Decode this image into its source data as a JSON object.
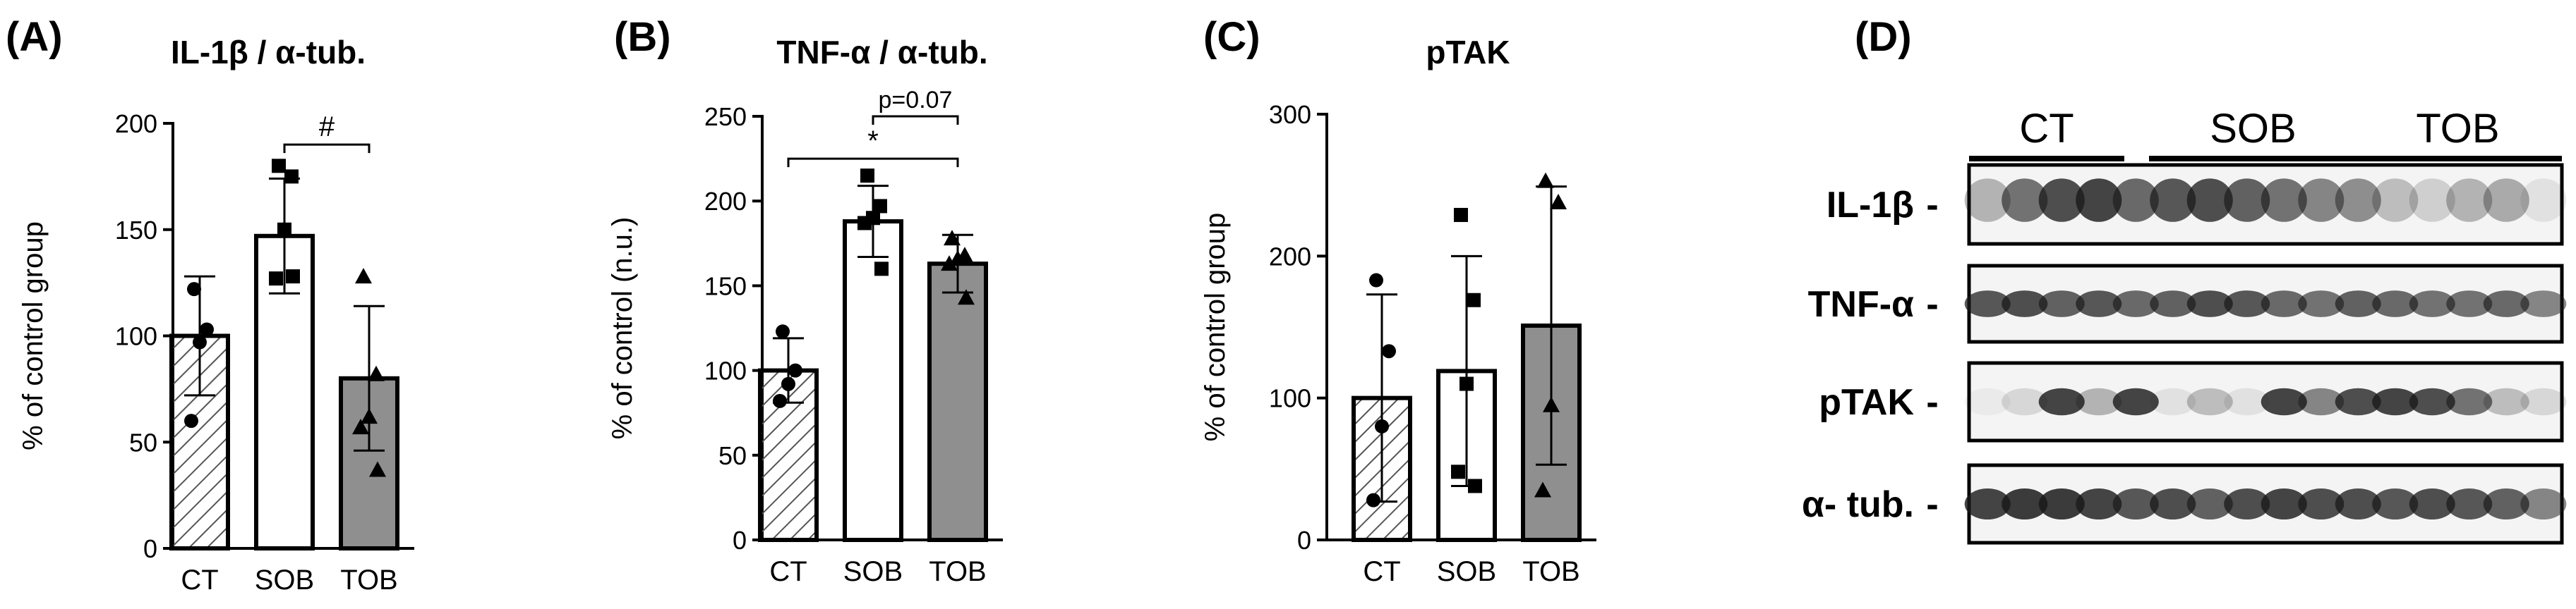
{
  "colors": {
    "ink": "#000000",
    "hatch": "#555555",
    "open": "#ffffff",
    "grey": "#8f8f8f",
    "gel": "#1a1a1a"
  },
  "chart_data": [
    {
      "panel": "(A)",
      "type": "bar",
      "title": "IL-1β / α-tub.",
      "ylabel": "% of control group",
      "ylim": [
        0,
        200
      ],
      "yticks": [
        0,
        50,
        100,
        150,
        200
      ],
      "categories": [
        "CT",
        "SOB",
        "TOB"
      ],
      "bars": [
        {
          "label": "CT",
          "value": 100,
          "err": 28,
          "fill": "hatch",
          "marker": "circle",
          "points": [
            122,
            103,
            97,
            60
          ]
        },
        {
          "label": "SOB",
          "value": 147,
          "err": 27,
          "fill": "open",
          "marker": "square",
          "points": [
            180,
            175,
            150,
            127,
            128
          ]
        },
        {
          "label": "TOB",
          "value": 80,
          "err": 34,
          "fill": "grey",
          "marker": "triangle",
          "points": [
            128,
            82,
            62,
            57,
            37
          ]
        }
      ],
      "annotations": [
        {
          "from": 1,
          "to": 2,
          "level": 190,
          "text": "#"
        }
      ]
    },
    {
      "panel": "(B)",
      "type": "bar",
      "title": "TNF-α / α-tub.",
      "ylabel": "% of control (n.u.)",
      "ylim": [
        0,
        250
      ],
      "yticks": [
        0,
        50,
        100,
        150,
        200,
        250
      ],
      "categories": [
        "CT",
        "SOB",
        "TOB"
      ],
      "bars": [
        {
          "label": "CT",
          "value": 100,
          "err": 19,
          "fill": "hatch",
          "marker": "circle",
          "points": [
            123,
            100,
            92,
            82
          ]
        },
        {
          "label": "SOB",
          "value": 188,
          "err": 21,
          "fill": "open",
          "marker": "square",
          "points": [
            215,
            197,
            190,
            187,
            160
          ]
        },
        {
          "label": "TOB",
          "value": 163,
          "err": 17,
          "fill": "grey",
          "marker": "triangle",
          "points": [
            178,
            168,
            166,
            163,
            143
          ]
        }
      ],
      "annotations": [
        {
          "from": 1,
          "to": 2,
          "level": 250,
          "text": "p=0.07"
        },
        {
          "from": 0,
          "to": 2,
          "level": 225,
          "text": "*"
        }
      ]
    },
    {
      "panel": "(C)",
      "type": "bar",
      "title": "pTAK",
      "ylabel": "% of control group",
      "ylim": [
        0,
        300
      ],
      "yticks": [
        0,
        100,
        200,
        300
      ],
      "categories": [
        "CT",
        "SOB",
        "TOB"
      ],
      "bars": [
        {
          "label": "CT",
          "value": 100,
          "err": 73,
          "fill": "hatch",
          "marker": "circle",
          "points": [
            183,
            133,
            80,
            28
          ]
        },
        {
          "label": "SOB",
          "value": 119,
          "err": 81,
          "fill": "open",
          "marker": "square",
          "points": [
            229,
            169,
            110,
            48,
            38
          ]
        },
        {
          "label": "TOB",
          "value": 151,
          "err": 98,
          "fill": "grey",
          "marker": "triangle",
          "points": [
            253,
            238,
            95,
            35
          ]
        }
      ],
      "annotations": []
    }
  ],
  "blot": {
    "panel": "(D)",
    "groups": [
      "CT",
      "SOB",
      "TOB"
    ],
    "rows": [
      {
        "label": "IL-1β",
        "bands": [
          0.35,
          0.7,
          0.9,
          0.95,
          0.75,
          0.85,
          0.9,
          0.8,
          0.7,
          0.6,
          0.55,
          0.3,
          0.2,
          0.35,
          0.4,
          0.1
        ],
        "thickness": 0.55
      },
      {
        "label": "TNF-α",
        "bands": [
          0.85,
          0.9,
          0.8,
          0.85,
          0.75,
          0.8,
          0.9,
          0.85,
          0.75,
          0.7,
          0.8,
          0.75,
          0.7,
          0.7,
          0.75,
          0.6
        ],
        "thickness": 0.35
      },
      {
        "label": "pTAK",
        "bands": [
          0.05,
          0.15,
          0.95,
          0.35,
          0.95,
          0.1,
          0.3,
          0.1,
          0.95,
          0.6,
          0.9,
          0.95,
          0.9,
          0.7,
          0.3,
          0.15
        ],
        "thickness": 0.35
      },
      {
        "label": "α- tub.",
        "bands": [
          0.95,
          1,
          1,
          0.95,
          0.85,
          0.9,
          0.8,
          0.9,
          0.95,
          0.9,
          0.9,
          0.85,
          0.9,
          0.85,
          0.8,
          0.6
        ],
        "thickness": 0.4
      }
    ]
  }
}
